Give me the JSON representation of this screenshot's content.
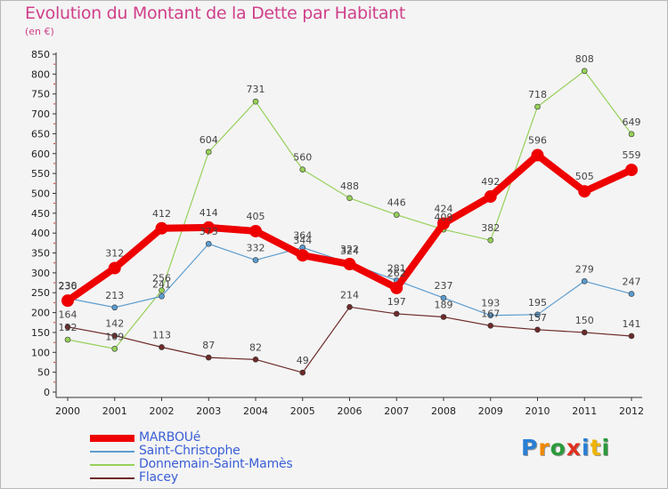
{
  "header": {
    "title": "Evolution du Montant de la Dette par Habitant",
    "subtitle": "(en €)"
  },
  "colors": {
    "title": "#d0408a",
    "MARBOUé": "#ee0000",
    "Saint-Christophe": "#5b9ccf",
    "Donnemain-Saint-Mamès": "#96d05a",
    "Flacey": "#6e2a2a"
  },
  "logo": {
    "text": "Proxiti"
  },
  "chart_data": {
    "type": "line",
    "title": "Evolution du Montant de la Dette par Habitant",
    "subtitle": "(en €)",
    "x": [
      "2000",
      "2001",
      "2002",
      "2003",
      "2004",
      "2005",
      "2006",
      "2007",
      "2008",
      "2009",
      "2010",
      "2011",
      "2012"
    ],
    "ylim": [
      0,
      850
    ],
    "yticks": [
      0,
      50,
      100,
      150,
      200,
      250,
      300,
      350,
      400,
      450,
      500,
      550,
      600,
      650,
      700,
      750,
      800,
      850
    ],
    "grid": false,
    "legend_position": "bottom-left",
    "series": [
      {
        "name": "MARBOUé",
        "values": [
          230,
          312,
          412,
          414,
          405,
          344,
          322,
          262,
          424,
          492,
          596,
          505,
          559
        ]
      },
      {
        "name": "Saint-Christophe",
        "values": [
          236,
          213,
          241,
          373,
          332,
          364,
          324,
          281,
          237,
          193,
          195,
          279,
          247
        ]
      },
      {
        "name": "Donnemain-Saint-Mamès",
        "values": [
          132,
          109,
          256,
          604,
          731,
          560,
          488,
          446,
          409,
          382,
          718,
          808,
          649
        ]
      },
      {
        "name": "Flacey",
        "values": [
          164,
          142,
          113,
          87,
          82,
          49,
          214,
          197,
          189,
          167,
          157,
          150,
          141
        ]
      }
    ]
  }
}
